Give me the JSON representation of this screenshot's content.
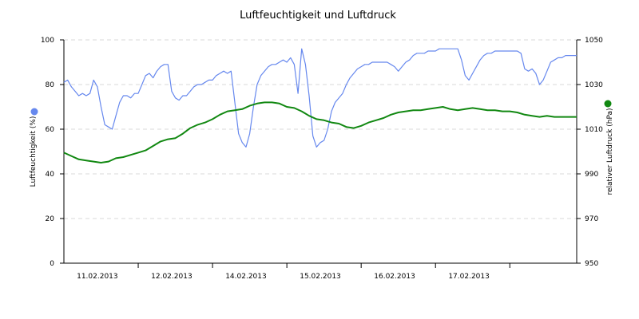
{
  "chart_data": {
    "type": "line",
    "title": "Luftfeuchtigkeit und Luftdruck",
    "x_tick_labels": [
      "11.02.2013",
      "12.02.2013",
      "14.02.2013",
      "15.02.2013",
      "16.02.2013",
      "17.02.2013"
    ],
    "left_axis": {
      "label": "Luftfeuchtigkeit (%)",
      "ylim": [
        0,
        100
      ],
      "ticks": [
        "0",
        "20",
        "40",
        "60",
        "80",
        "100"
      ]
    },
    "right_axis": {
      "label": "relativer Luftdruck (hPa)",
      "ylim": [
        950,
        1050
      ],
      "ticks": [
        "950",
        "970",
        "990",
        "1010",
        "1030",
        "1050"
      ]
    },
    "grid": true,
    "xlim": [
      0,
      6.9
    ],
    "series": [
      {
        "axis": "left",
        "color": "#6688ee",
        "x": [
          0,
          0.05,
          0.1,
          0.15,
          0.2,
          0.25,
          0.3,
          0.35,
          0.4,
          0.45,
          0.5,
          0.55,
          0.6,
          0.65,
          0.7,
          0.75,
          0.8,
          0.85,
          0.9,
          0.95,
          1.0,
          1.05,
          1.1,
          1.15,
          1.2,
          1.25,
          1.3,
          1.35,
          1.4,
          1.45,
          1.5,
          1.55,
          1.6,
          1.65,
          1.7,
          1.75,
          1.8,
          1.85,
          1.9,
          1.95,
          2.0,
          2.05,
          2.1,
          2.15,
          2.2,
          2.25,
          2.3,
          2.35,
          2.4,
          2.45,
          2.5,
          2.55,
          2.6,
          2.65,
          2.7,
          2.75,
          2.8,
          2.85,
          2.9,
          2.95,
          3.0,
          3.05,
          3.1,
          3.15,
          3.2,
          3.25,
          3.3,
          3.35,
          3.4,
          3.45,
          3.5,
          3.55,
          3.6,
          3.65,
          3.7,
          3.75,
          3.8,
          3.85,
          3.9,
          3.95,
          4.0,
          4.05,
          4.1,
          4.15,
          4.2,
          4.25,
          4.3,
          4.35,
          4.4,
          4.45,
          4.5,
          4.55,
          4.6,
          4.65,
          4.7,
          4.75,
          4.8,
          4.85,
          4.9,
          4.95,
          5.0,
          5.05,
          5.1,
          5.15,
          5.2,
          5.25,
          5.3,
          5.35,
          5.4,
          5.45,
          5.5,
          5.55,
          5.6,
          5.65,
          5.7,
          5.75,
          5.8,
          5.85,
          5.9,
          5.95,
          6.0,
          6.05,
          6.1,
          6.15,
          6.2,
          6.25,
          6.3,
          6.35,
          6.4,
          6.45,
          6.5,
          6.55,
          6.6,
          6.65,
          6.7,
          6.75,
          6.8,
          6.85,
          6.9
        ],
        "values": [
          81,
          82,
          79,
          77,
          75,
          76,
          75,
          76,
          82,
          79,
          70,
          62,
          61,
          60,
          66,
          72,
          75,
          75,
          74,
          76,
          76,
          80,
          84,
          85,
          83,
          86,
          88,
          89,
          89,
          77,
          74,
          73,
          75,
          75,
          77,
          79,
          80,
          80,
          81,
          82,
          82,
          84,
          85,
          86,
          85,
          86,
          72,
          58,
          54,
          52,
          58,
          70,
          80,
          84,
          86,
          88,
          89,
          89,
          90,
          91,
          90,
          92,
          89,
          76,
          96,
          89,
          75,
          57,
          52,
          54,
          55,
          60,
          68,
          72,
          74,
          76,
          80,
          83,
          85,
          87,
          88,
          89,
          89,
          90,
          90,
          90,
          90,
          90,
          89,
          88,
          86,
          88,
          90,
          91,
          93,
          94,
          94,
          94,
          95,
          95,
          95,
          96,
          96,
          96,
          96,
          96,
          96,
          91,
          84,
          82,
          85,
          88,
          91,
          93,
          94,
          94,
          95,
          95,
          95,
          95,
          95,
          95,
          95,
          94,
          87,
          86,
          87,
          85,
          80,
          82,
          86,
          90,
          91,
          92,
          92,
          93,
          93,
          93,
          93
        ]
      },
      {
        "axis": "right",
        "color": "#118811",
        "x": [
          0,
          0.1,
          0.2,
          0.3,
          0.4,
          0.5,
          0.6,
          0.7,
          0.8,
          0.9,
          1.0,
          1.1,
          1.2,
          1.3,
          1.4,
          1.5,
          1.6,
          1.7,
          1.8,
          1.9,
          2.0,
          2.1,
          2.2,
          2.3,
          2.4,
          2.5,
          2.6,
          2.7,
          2.8,
          2.9,
          3.0,
          3.1,
          3.2,
          3.3,
          3.4,
          3.5,
          3.6,
          3.7,
          3.8,
          3.9,
          4.0,
          4.1,
          4.2,
          4.3,
          4.4,
          4.5,
          4.6,
          4.7,
          4.8,
          4.9,
          5.0,
          5.1,
          5.2,
          5.3,
          5.4,
          5.5,
          5.6,
          5.7,
          5.8,
          5.9,
          6.0,
          6.1,
          6.2,
          6.3,
          6.4,
          6.5,
          6.6,
          6.7,
          6.8,
          6.9
        ],
        "values": [
          999.5,
          998,
          996.5,
          996,
          995.5,
          995,
          995.5,
          997,
          997.5,
          998.5,
          999.5,
          1000.5,
          1002.5,
          1004.5,
          1005.5,
          1006,
          1008,
          1010.5,
          1012,
          1013,
          1014.5,
          1016.5,
          1018,
          1018.5,
          1019,
          1020.5,
          1021.5,
          1022,
          1022,
          1021.5,
          1020,
          1019.5,
          1018,
          1016,
          1014.5,
          1014,
          1013,
          1012.5,
          1011,
          1010.5,
          1011.5,
          1013,
          1014,
          1015,
          1016.5,
          1017.5,
          1018,
          1018.5,
          1018.5,
          1019,
          1019.5,
          1020,
          1019,
          1018.5,
          1019,
          1019.5,
          1019,
          1018.5,
          1018.5,
          1018,
          1018,
          1017.5,
          1016.5,
          1016,
          1015.5,
          1016,
          1015.5,
          1015.5,
          1015.5,
          1015.5
        ]
      }
    ]
  }
}
